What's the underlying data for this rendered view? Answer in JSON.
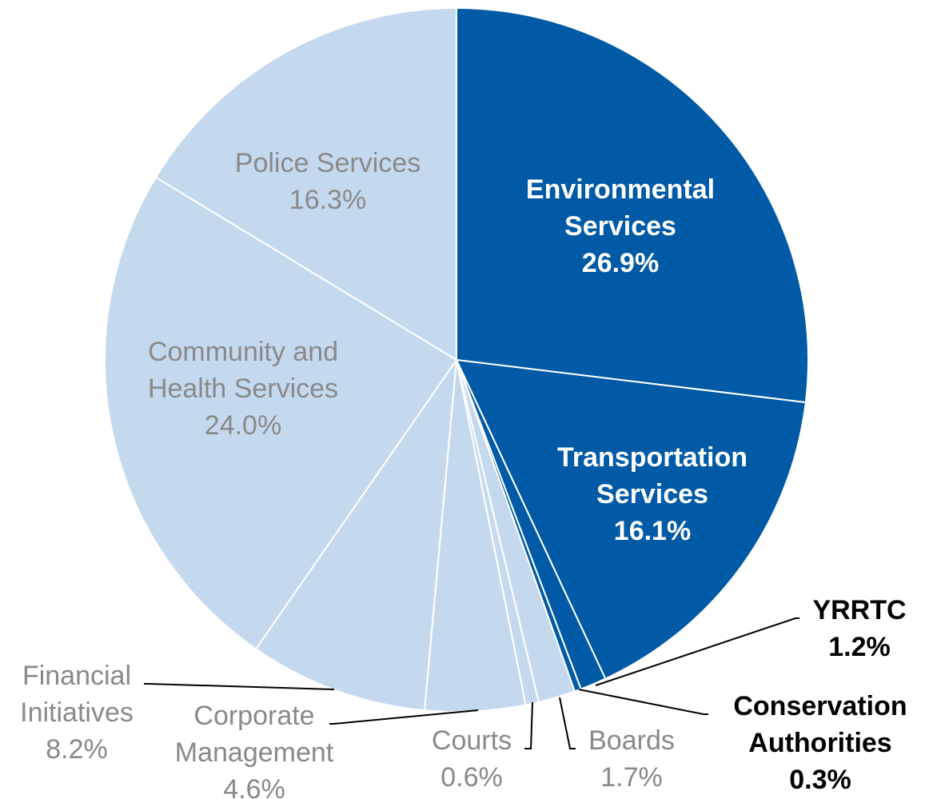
{
  "chart_data": {
    "type": "pie",
    "start": "12 o'clock",
    "direction": "clockwise",
    "colors": {
      "dark": "#005aa5",
      "light": "#c5d9ee",
      "separator": "#ffffff"
    },
    "slices": [
      {
        "id": "environmental",
        "label_lines": [
          "Environmental",
          "Services"
        ],
        "pct_label": "26.9%",
        "value": 26.9,
        "shade": "dark"
      },
      {
        "id": "transportation",
        "label_lines": [
          "Transportation",
          "Services"
        ],
        "pct_label": "16.1%",
        "value": 16.1,
        "shade": "dark"
      },
      {
        "id": "yrrtc",
        "label_lines": [
          "YRRTC"
        ],
        "pct_label": "1.2%",
        "value": 1.2,
        "shade": "dark"
      },
      {
        "id": "conservation",
        "label_lines": [
          "Conservation",
          "Authorities"
        ],
        "pct_label": "0.3%",
        "value": 0.3,
        "shade": "dark"
      },
      {
        "id": "boards",
        "label_lines": [
          "Boards"
        ],
        "pct_label": "1.7%",
        "value": 1.7,
        "shade": "light"
      },
      {
        "id": "courts",
        "label_lines": [
          "Courts"
        ],
        "pct_label": "0.6%",
        "value": 0.6,
        "shade": "light"
      },
      {
        "id": "corporate",
        "label_lines": [
          "Corporate",
          "Management"
        ],
        "pct_label": "4.6%",
        "value": 4.6,
        "shade": "light"
      },
      {
        "id": "financial",
        "label_lines": [
          "Financial",
          "Initiatives"
        ],
        "pct_label": "8.2%",
        "value": 8.2,
        "shade": "light"
      },
      {
        "id": "community",
        "label_lines": [
          "Community and",
          "Health Services"
        ],
        "pct_label": "24.0%",
        "value": 24.0,
        "shade": "light"
      },
      {
        "id": "police",
        "label_lines": [
          "Police Services"
        ],
        "pct_label": "16.3%",
        "value": 16.3,
        "shade": "light"
      }
    ]
  }
}
